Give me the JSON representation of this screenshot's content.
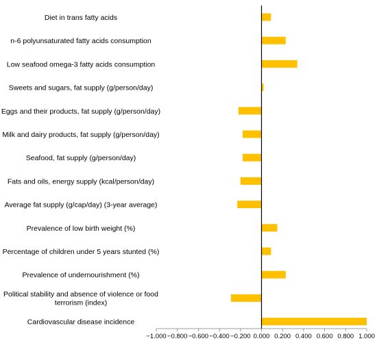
{
  "chart_data": {
    "type": "bar",
    "orientation": "horizontal",
    "categories": [
      "Diet in trans fatty acids",
      "n-6 polyunsaturated fatty acids consumption",
      "Low seafood omega-3 fatty acids consumption",
      "Sweets and sugars, fat supply (g/person/day)",
      "Eggs and their products, fat supply (g/person/day)",
      "Milk and dairy products, fat supply (g/person/day)",
      "Seafood, fat supply (g/person/day)",
      "Fats and oils, energy supply (kcal/person/day)",
      "Average fat supply (g/cap/day) (3-year average)",
      "Prevalence of low birth weight (%)",
      "Percentage of children under 5 years stunted (%)",
      "Prevalence of undernourishment (%)",
      "Political stability and absence of violence or food terrorism (index)",
      "Cardiovascular disease incidence"
    ],
    "category_lines": [
      [
        "Diet in trans fatty acids"
      ],
      [
        "n-6 polyunsaturated fatty acids consumption"
      ],
      [
        "Low seafood omega-3 fatty acids consumption"
      ],
      [
        "Sweets and sugars, fat supply (g/person/day)"
      ],
      [
        "Eggs and their products, fat supply (g/person/day)"
      ],
      [
        "Milk and dairy products, fat supply (g/person/day)"
      ],
      [
        "Seafood, fat supply (g/person/day)"
      ],
      [
        "Fats and oils, energy supply (kcal/person/day)"
      ],
      [
        "Average fat supply (g/cap/day) (3-year average)"
      ],
      [
        "Prevalence of low birth weight (%)"
      ],
      [
        "Percentage of children under 5 years stunted (%)"
      ],
      [
        "Prevalence of undernourishment (%)"
      ],
      [
        "Political stability and absence of violence or food",
        "terrorism (index)"
      ],
      [
        "Cardiovascular disease incidence"
      ]
    ],
    "values": [
      0.09,
      0.23,
      0.34,
      0.02,
      -0.22,
      -0.18,
      -0.18,
      -0.2,
      -0.23,
      0.15,
      0.09,
      0.23,
      -0.29,
      1.0
    ],
    "xlim": [
      -1.0,
      1.0
    ],
    "xticks": [
      -1.0,
      -0.8,
      -0.6,
      -0.4,
      -0.2,
      0.0,
      0.2,
      0.4,
      0.6,
      0.8,
      1.0
    ],
    "xtick_labels": [
      "−1.000",
      "−0.800",
      "−0.600",
      "−0.400",
      "−0.200",
      "0.000",
      "0.200",
      "0.400",
      "0.600",
      "0.800",
      "1.000"
    ],
    "title": "",
    "xlabel": "",
    "ylabel": "",
    "grid": false,
    "legend": "none",
    "bar_color": "#FFC000",
    "axis_color": "#000000"
  }
}
